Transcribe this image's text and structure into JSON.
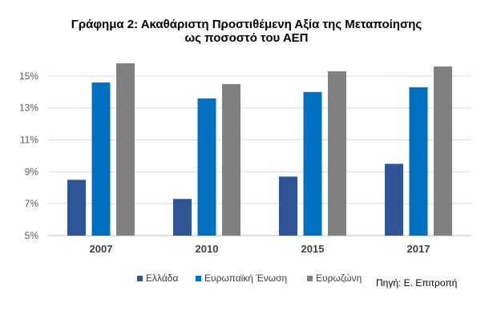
{
  "chart_data": {
    "type": "bar",
    "title_lines": [
      "Γράφημα 2: Ακαθάριστη Προστιθέμενη Αξία της Μεταποίησης",
      "ως ποσοστό του ΑΕΠ"
    ],
    "categories": [
      "2007",
      "2010",
      "2015",
      "2017"
    ],
    "series": [
      {
        "name": "Ελλάδα",
        "color": "#2f5597",
        "values": [
          8.5,
          7.3,
          8.7,
          9.5
        ]
      },
      {
        "name": "Ευρωπαϊκή Ένωση",
        "color": "#0070c0",
        "values": [
          14.6,
          13.6,
          14.0,
          14.3
        ]
      },
      {
        "name": "Ευρωζώνη",
        "color": "#808080",
        "values": [
          15.8,
          14.5,
          15.3,
          15.6
        ]
      }
    ],
    "yticks": [
      "5%",
      "7%",
      "9%",
      "11%",
      "13%",
      "15%"
    ],
    "ytick_values": [
      5,
      7,
      9,
      11,
      13,
      15
    ],
    "ylim": [
      5,
      16
    ],
    "grid": true,
    "legend_position": "bottom"
  },
  "source": "Πηγή: Ε. Επιτροπή"
}
